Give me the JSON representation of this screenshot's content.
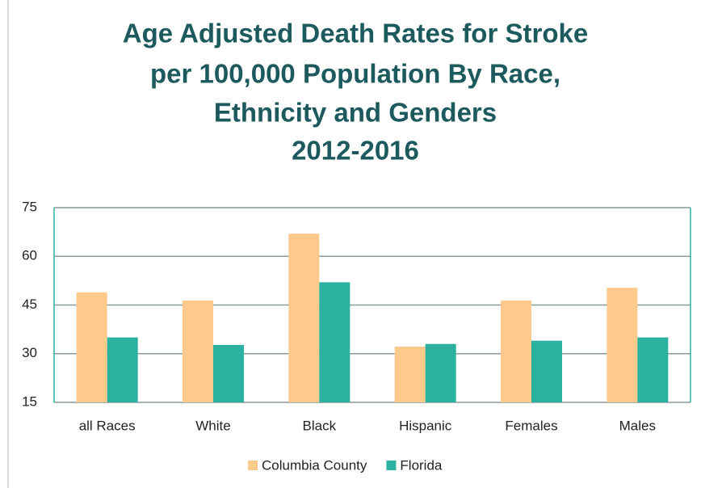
{
  "chart_data": {
    "type": "bar",
    "title": [
      "Age Adjusted Death Rates for Stroke",
      "per 100,000 Population By Race,",
      "Ethnicity and Genders",
      "2012-2016"
    ],
    "categories": [
      "all Races",
      "White",
      "Black",
      "Hispanic",
      "Females",
      "Males"
    ],
    "series": [
      {
        "name": "Columbia County",
        "color": "#fdca8b",
        "values": [
          48.9,
          46.4,
          67,
          32.2,
          46.4,
          50.3
        ]
      },
      {
        "name": "Florida",
        "color": "#2cb1a1",
        "values": [
          35,
          32.7,
          52,
          33,
          34,
          35
        ]
      }
    ],
    "ylim": [
      15,
      75
    ],
    "yticks": [
      15,
      30,
      45,
      60,
      75
    ],
    "grid": true,
    "legend": "bottom"
  }
}
